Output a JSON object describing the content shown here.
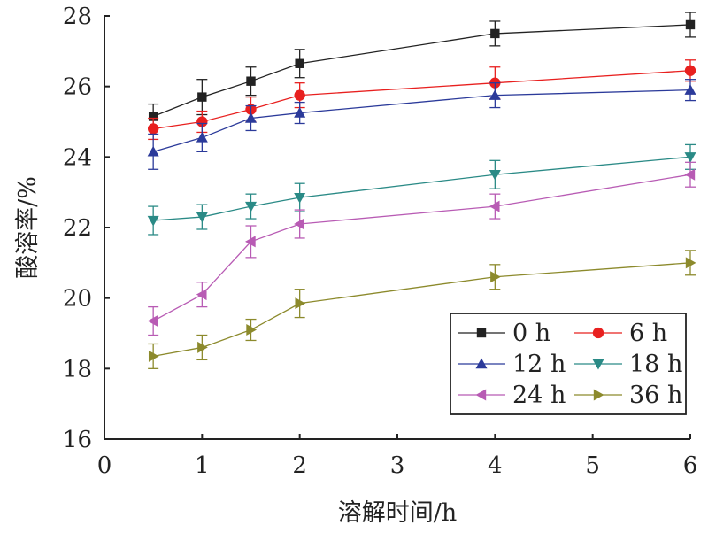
{
  "chart_data": {
    "type": "line",
    "xlabel": "溶解时间/h",
    "ylabel": "酸溶率/%",
    "xlim": [
      0,
      6
    ],
    "ylim": [
      16,
      28
    ],
    "xticks": [
      0,
      1,
      2,
      3,
      4,
      5,
      6
    ],
    "yticks": [
      16,
      18,
      20,
      22,
      24,
      26,
      28
    ],
    "x": [
      0.5,
      1,
      1.5,
      2,
      4,
      6
    ],
    "grid": false,
    "legend_position": "bottom-right",
    "series": [
      {
        "name": "0 h",
        "color": "#222222",
        "marker": "square",
        "values": [
          25.15,
          25.7,
          26.15,
          26.65,
          27.5,
          27.75
        ],
        "errors": [
          0.35,
          0.5,
          0.4,
          0.4,
          0.35,
          0.35
        ]
      },
      {
        "name": "6 h",
        "color": "#e8201f",
        "marker": "circle",
        "values": [
          24.8,
          25.0,
          25.35,
          25.75,
          26.1,
          26.45
        ],
        "errors": [
          0.3,
          0.3,
          0.35,
          0.35,
          0.45,
          0.3
        ]
      },
      {
        "name": "12 h",
        "color": "#2b3a9a",
        "marker": "triangle-up",
        "values": [
          24.15,
          24.55,
          25.1,
          25.25,
          25.75,
          25.9
        ],
        "errors": [
          0.5,
          0.4,
          0.35,
          0.3,
          0.35,
          0.3
        ]
      },
      {
        "name": "18 h",
        "color": "#2a8a86",
        "marker": "triangle-down",
        "values": [
          22.2,
          22.3,
          22.6,
          22.85,
          23.5,
          24.0
        ],
        "errors": [
          0.4,
          0.35,
          0.35,
          0.4,
          0.4,
          0.35
        ]
      },
      {
        "name": "24 h",
        "color": "#b85bb4",
        "marker": "triangle-left",
        "values": [
          19.35,
          20.1,
          21.6,
          22.1,
          22.6,
          23.5
        ],
        "errors": [
          0.4,
          0.35,
          0.45,
          0.4,
          0.35,
          0.35
        ]
      },
      {
        "name": "36 h",
        "color": "#8c8a2c",
        "marker": "triangle-right",
        "values": [
          18.35,
          18.6,
          19.1,
          19.85,
          20.6,
          21.0
        ],
        "errors": [
          0.35,
          0.35,
          0.3,
          0.4,
          0.35,
          0.35
        ]
      }
    ]
  }
}
